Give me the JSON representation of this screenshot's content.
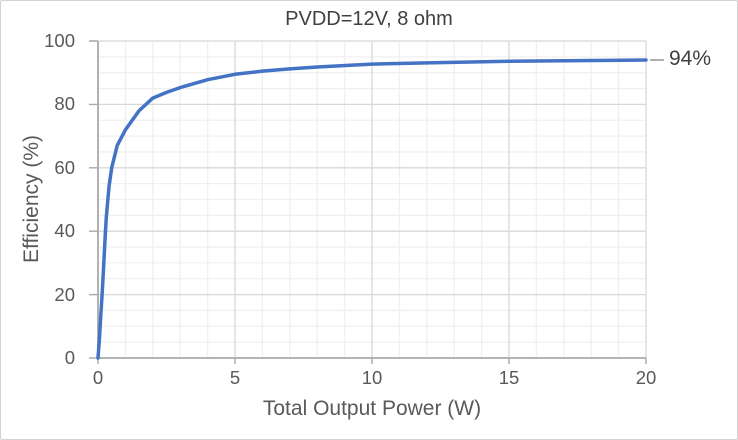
{
  "window": {
    "background": "#ffffff",
    "border_color": "#d2d2d2"
  },
  "chart_data": {
    "type": "line",
    "title": "PVDD=12V, 8 ohm",
    "xlabel": "Total Output Power (W)",
    "ylabel": "Efficiency (%)",
    "xlim": [
      0,
      20
    ],
    "ylim": [
      0,
      100
    ],
    "x_ticks": [
      0,
      5,
      10,
      15,
      20
    ],
    "y_ticks": [
      0,
      20,
      40,
      60,
      80,
      100
    ],
    "x_minor_step": 1,
    "y_minor_step": 5,
    "grid": {
      "minor_color": "#f0f0f0",
      "major_color": "#d8d8d8",
      "axis_color": "#a9a9a9",
      "minor_on": true,
      "major_on": true
    },
    "legend": "none",
    "text_colors": {
      "title": "#404040",
      "axis_title": "#595959",
      "tick": "#595959",
      "annotation": "#404040",
      "leader": "#7f7f7f"
    },
    "series": [
      {
        "name": "Efficiency",
        "color": "#4472c4",
        "line_width": 3.5,
        "x": [
          0,
          0.05,
          0.1,
          0.15,
          0.2,
          0.25,
          0.3,
          0.4,
          0.5,
          0.7,
          1,
          1.5,
          2,
          2.5,
          3,
          4,
          5,
          6,
          7,
          8,
          10,
          12,
          15,
          20
        ],
        "y": [
          0,
          6,
          13,
          20,
          28,
          36,
          44,
          54,
          60,
          67,
          72,
          78,
          82,
          83.8,
          85.3,
          87.8,
          89.5,
          90.5,
          91.2,
          91.8,
          92.7,
          93.1,
          93.6,
          94
        ]
      }
    ],
    "annotation": {
      "text": "94%",
      "x": 20,
      "y": 94
    }
  }
}
